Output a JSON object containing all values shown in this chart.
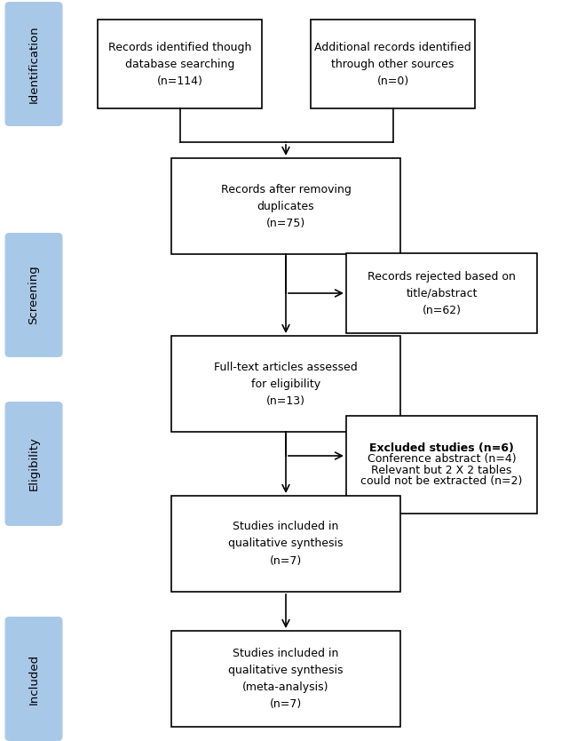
{
  "bg_color": "#ffffff",
  "sidebar_color": "#a8c8e8",
  "sidebar_labels": [
    "Identification",
    "Screening",
    "Eligibility",
    "Included"
  ],
  "font_size_box": 9,
  "font_size_sidebar": 9.5
}
